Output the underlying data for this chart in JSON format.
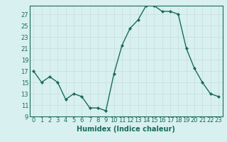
{
  "x": [
    0,
    1,
    2,
    3,
    4,
    5,
    6,
    7,
    8,
    9,
    10,
    11,
    12,
    13,
    14,
    15,
    16,
    17,
    18,
    19,
    20,
    21,
    22,
    23
  ],
  "y": [
    17,
    15,
    16,
    15,
    12,
    13,
    12.5,
    10.5,
    10.5,
    10,
    16.5,
    21.5,
    24.5,
    26,
    28.5,
    28.5,
    27.5,
    27.5,
    27,
    21,
    17.5,
    15,
    13,
    12.5
  ],
  "line_color": "#1a6b5a",
  "marker": "D",
  "marker_size": 2.0,
  "xlabel": "Humidex (Indice chaleur)",
  "xlim": [
    -0.5,
    23.5
  ],
  "ylim": [
    9,
    28.5
  ],
  "yticks": [
    9,
    11,
    13,
    15,
    17,
    19,
    21,
    23,
    25,
    27
  ],
  "xticks": [
    0,
    1,
    2,
    3,
    4,
    5,
    6,
    7,
    8,
    9,
    10,
    11,
    12,
    13,
    14,
    15,
    16,
    17,
    18,
    19,
    20,
    21,
    22,
    23
  ],
  "bg_color": "#d8f0f0",
  "grid_color": "#c8e0e0",
  "line_width": 1.0,
  "tick_color": "#1a6b5a",
  "label_color": "#1a6b5a",
  "xlabel_fontsize": 7.0,
  "tick_fontsize": 6.0
}
